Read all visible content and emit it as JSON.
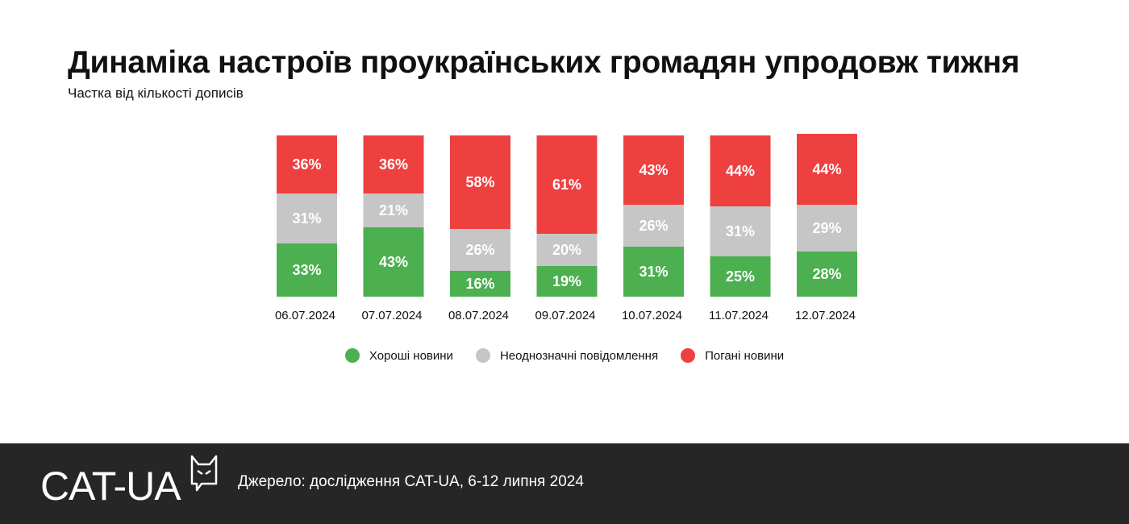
{
  "header": {
    "title": "Динаміка настроїв проукраїнських громадян упродовж тижня",
    "subtitle": "Частка від кількості дописів"
  },
  "chart_data": {
    "type": "bar",
    "stacked": true,
    "categories": [
      "06.07.2024",
      "07.07.2024",
      "08.07.2024",
      "09.07.2024",
      "10.07.2024",
      "11.07.2024",
      "12.07.2024"
    ],
    "series": [
      {
        "name": "Хороші новини",
        "color": "#4caf50",
        "values": [
          33,
          43,
          16,
          19,
          31,
          25,
          28
        ]
      },
      {
        "name": "Неоднозначні повідомлення",
        "color": "#c6c6c6",
        "values": [
          31,
          21,
          26,
          20,
          26,
          31,
          29
        ]
      },
      {
        "name": "Погані новини",
        "color": "#ef4040",
        "values": [
          36,
          36,
          58,
          61,
          43,
          44,
          44
        ]
      }
    ],
    "unit": "%",
    "ylim": [
      0,
      100
    ],
    "legend_position": "bottom-center"
  },
  "footer": {
    "logo_text": "CAT-UA",
    "source": "Джерело: дослідження CAT-UA, 6-12 липня 2024"
  }
}
